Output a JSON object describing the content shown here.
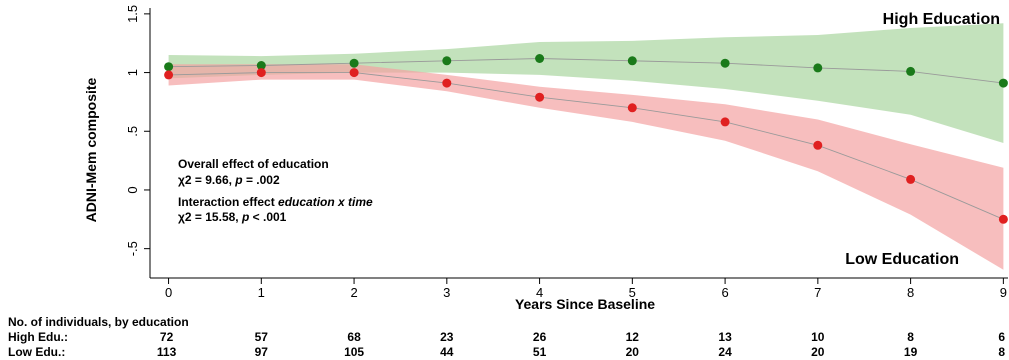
{
  "chart_data": {
    "type": "line",
    "xlabel": "Years Since Baseline",
    "ylabel": "ADNI-Mem composite",
    "xlim": [
      -0.2,
      9.05
    ],
    "ylim": [
      -0.75,
      1.55
    ],
    "x_ticks": [
      0,
      1,
      2,
      3,
      4,
      5,
      6,
      7,
      8,
      9
    ],
    "y_ticks": [
      -0.5,
      0,
      0.5,
      1,
      1.5
    ],
    "y_tick_labels": [
      "-.5",
      "0",
      ".5",
      "1",
      "1.5"
    ],
    "grid": false,
    "x": [
      0,
      1,
      2,
      3,
      4,
      5,
      6,
      7,
      8,
      9
    ],
    "series": [
      {
        "name": "High Education",
        "color": "#1a7a1a",
        "band_color": "#a9d5a0",
        "values": [
          1.05,
          1.06,
          1.08,
          1.1,
          1.12,
          1.1,
          1.08,
          1.04,
          1.01,
          0.91
        ],
        "lower": [
          0.95,
          0.98,
          1.0,
          1.0,
          0.98,
          0.93,
          0.86,
          0.76,
          0.64,
          0.4
        ],
        "upper": [
          1.15,
          1.14,
          1.16,
          1.2,
          1.26,
          1.27,
          1.3,
          1.32,
          1.38,
          1.42
        ]
      },
      {
        "name": "Low Education",
        "color": "#e02020",
        "band_color": "#f4a3a3",
        "values": [
          0.98,
          1.0,
          1.0,
          0.91,
          0.79,
          0.7,
          0.58,
          0.38,
          0.09,
          -0.25
        ],
        "lower": [
          0.89,
          0.94,
          0.94,
          0.84,
          0.7,
          0.58,
          0.42,
          0.16,
          -0.21,
          -0.68
        ],
        "upper": [
          1.07,
          1.07,
          1.07,
          0.98,
          0.88,
          0.81,
          0.73,
          0.6,
          0.39,
          0.19
        ]
      }
    ],
    "group_labels": {
      "high": "High Education",
      "low": "Low Education"
    },
    "annotations": {
      "overall_title": "Overall effect of education",
      "overall_stat_a": "χ2 = 9.66, ",
      "overall_p_symbol": "p",
      "overall_stat_b": " = .002",
      "interaction_title_a": "Interaction effect ",
      "interaction_title_b": "education x time",
      "interaction_stat_a": "χ2 = 15.58, ",
      "interaction_p_symbol": "p",
      "interaction_stat_b": " < .001"
    },
    "counts": {
      "title": "No. of individuals, by education",
      "rows": [
        {
          "label": "High Edu.:",
          "values": [
            "72",
            "57",
            "68",
            "23",
            "26",
            "12",
            "13",
            "10",
            "8",
            "6"
          ]
        },
        {
          "label": "Low Edu.:",
          "values": [
            "113",
            "97",
            "105",
            "44",
            "51",
            "20",
            "24",
            "20",
            "19",
            "8"
          ]
        }
      ]
    }
  }
}
